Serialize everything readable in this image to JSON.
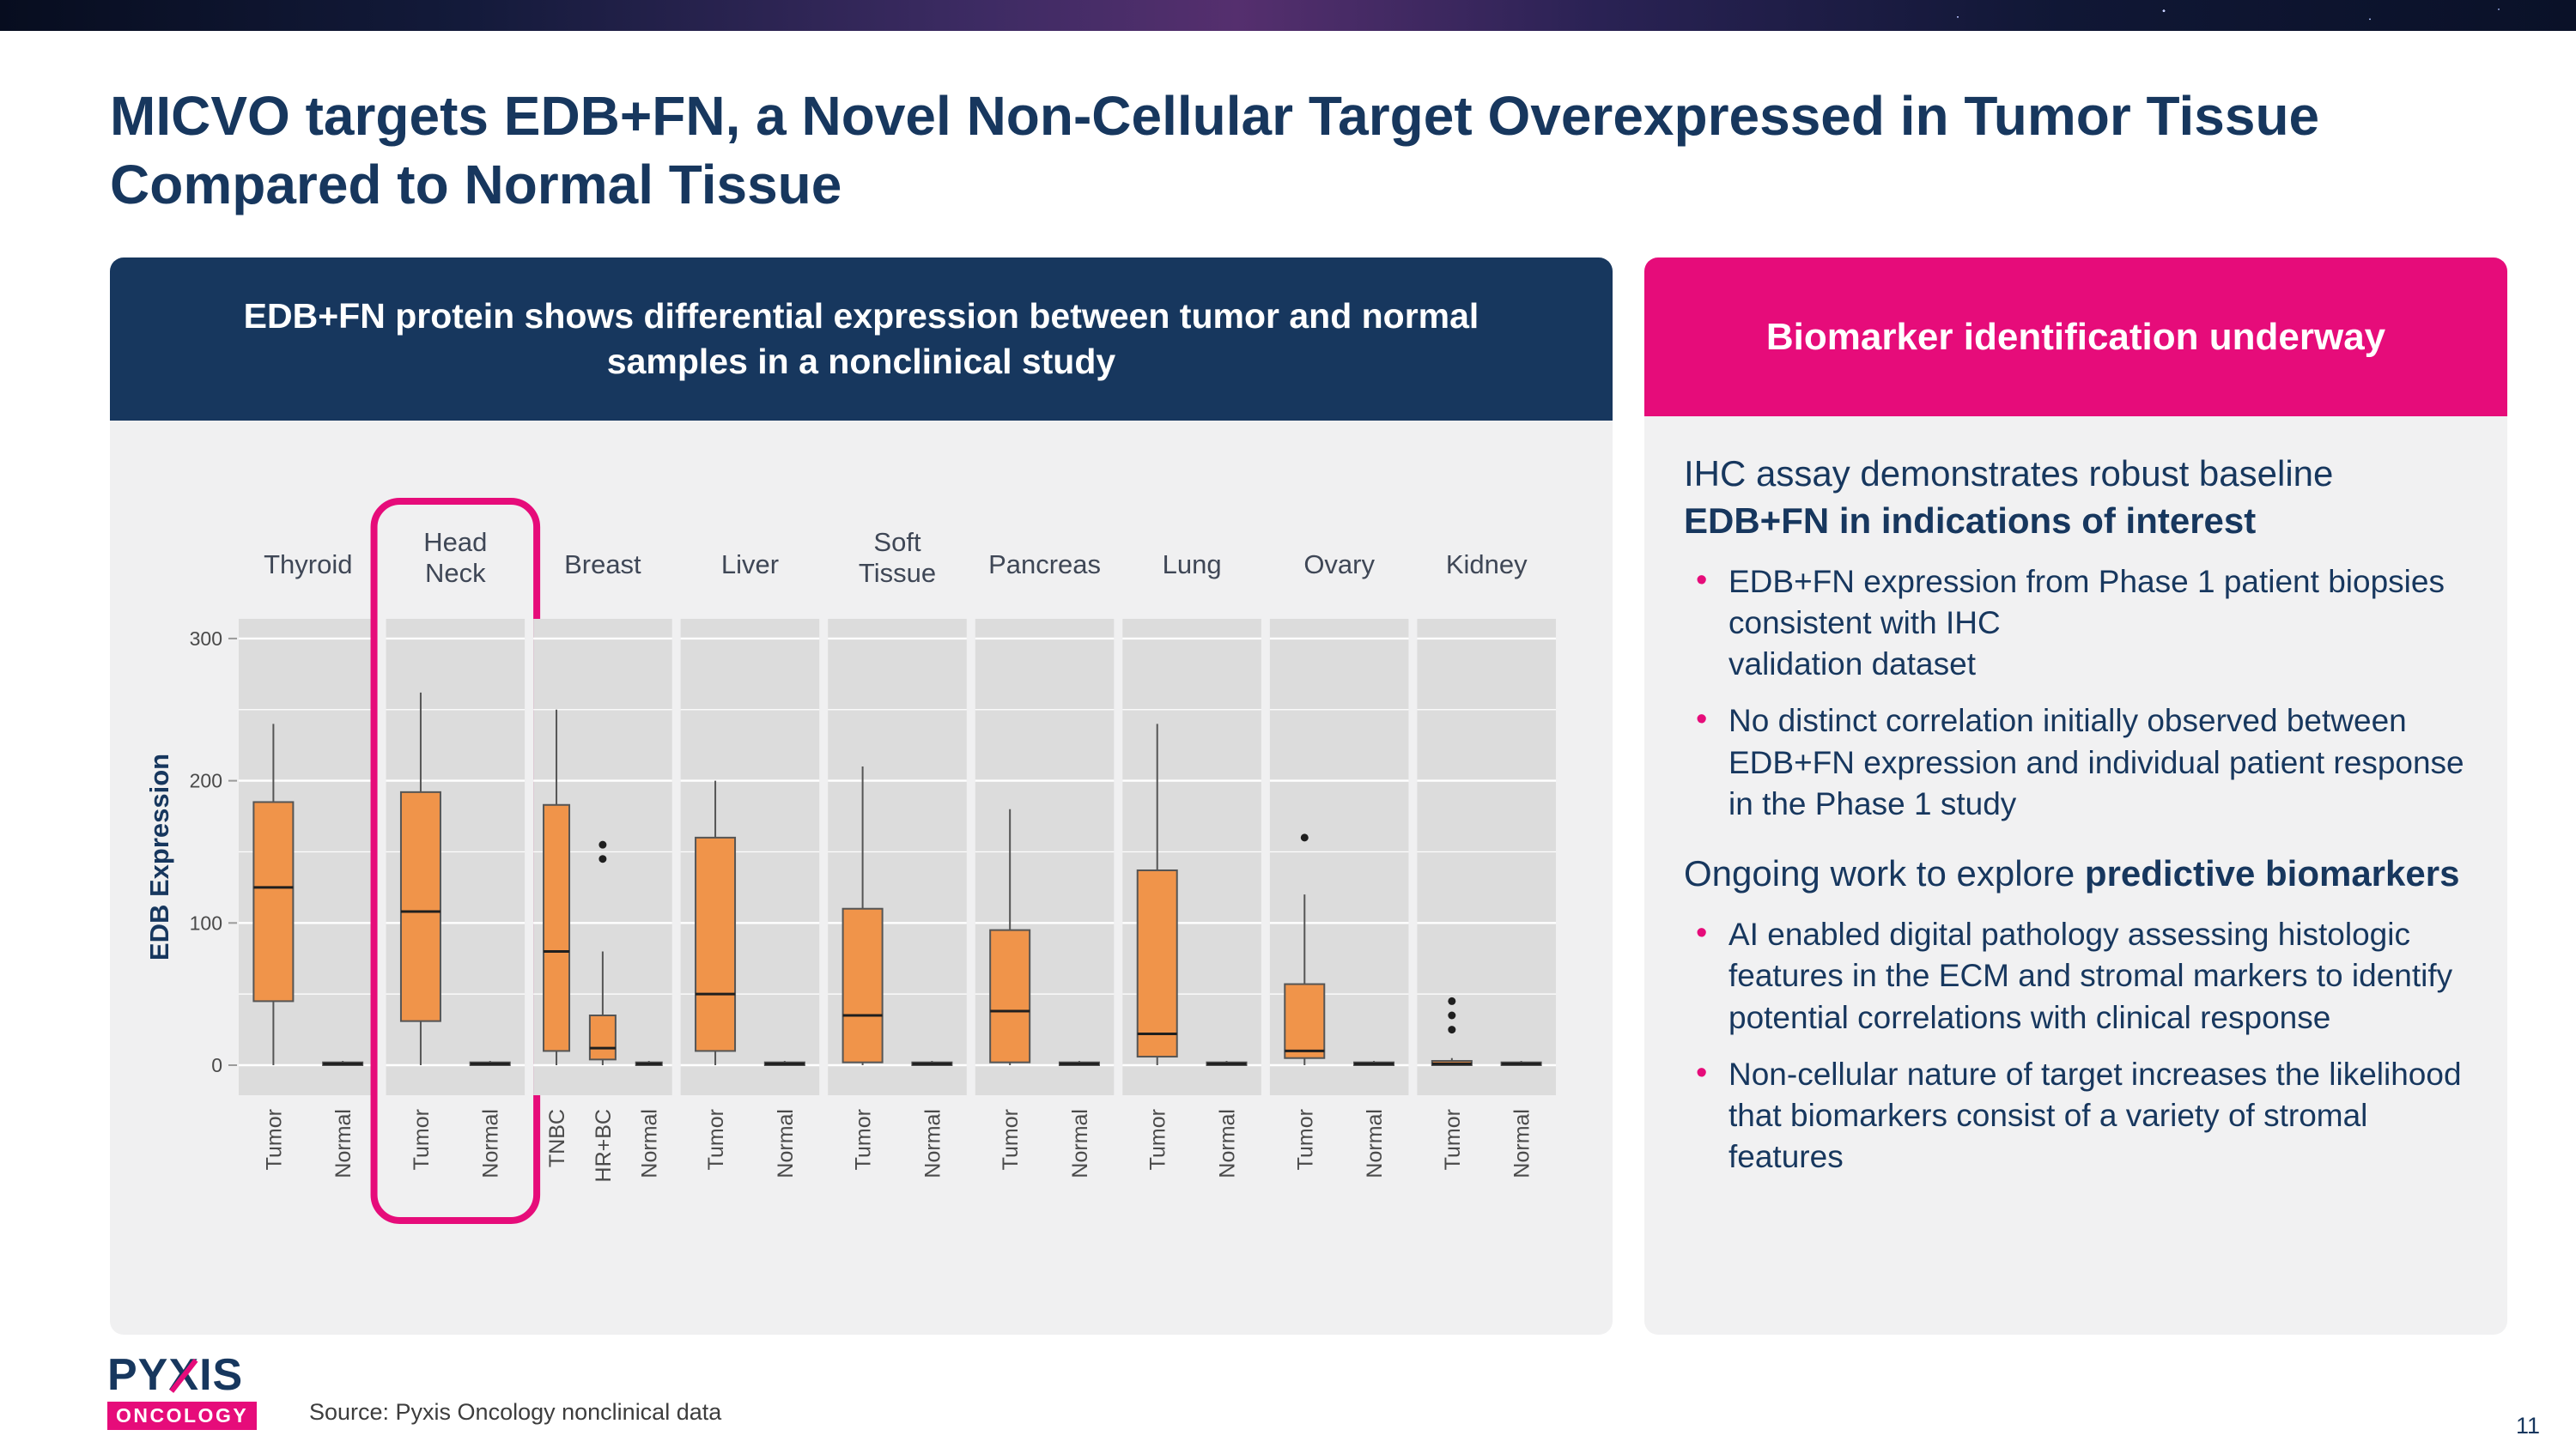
{
  "title": "MICVO targets EDB+FN, a Novel Non-Cellular Target Overexpressed in Tumor Tissue Compared to Normal Tissue",
  "left_panel": {
    "header": "EDB+FN protein shows differential expression between tumor and normal samples in a nonclinical study"
  },
  "right_panel": {
    "header": "Biomarker identification underway",
    "section1": {
      "intro_text": "IHC assay demonstrates robust baseline ",
      "intro_bold": "EDB+FN in indications of interest",
      "bullets": [
        "EDB+FN expression from Phase 1 patient biopsies consistent with IHC\nvalidation dataset",
        "No distinct correlation initially observed between EDB+FN expression and individual patient response in the Phase 1 study"
      ]
    },
    "section2": {
      "intro_text": "Ongoing work to explore ",
      "intro_bold": "predictive biomarkers",
      "bullets": [
        "AI enabled digital pathology assessing histologic features in the ECM and stromal markers to identify potential correlations with clinical response",
        "Non-cellular nature of target increases the likelihood that biomarkers consist of a variety of stromal features"
      ]
    }
  },
  "logo": {
    "p1": "PY",
    "x": "X",
    "p2": "IS",
    "sub": "ONCOLOGY"
  },
  "page": {
    "source": "Source: Pyxis Oncology nonclinical data",
    "page_number": "11"
  },
  "chart_data": {
    "type": "boxplot",
    "title": "EDB+FN protein shows differential expression between tumor and normal samples in a nonclinical study",
    "ylabel": "EDB Expression",
    "yticks": [
      0,
      100,
      200,
      300
    ],
    "yminor": [
      50,
      150,
      250
    ],
    "ylim": [
      -20,
      315
    ],
    "grid": true,
    "highlighted_group": "Head Neck",
    "colors": {
      "box_fill": "#F0944A",
      "box_stroke": "#555555",
      "panel_bg": "#DCDCDC",
      "grid": "#FFFFFF",
      "highlight": "#E60C7A",
      "label": "#3F4756",
      "tick": "#4A4A4A",
      "axis_title": "#17375E"
    },
    "groups": [
      {
        "label": "Thyroid",
        "label_lines": [
          "Thyroid"
        ],
        "highlighted": false,
        "boxes": [
          {
            "category": "Tumor",
            "low": 0,
            "q1": 45,
            "median": 125,
            "q3": 185,
            "high": 240,
            "outliers": []
          },
          {
            "category": "Normal",
            "low": 0,
            "q1": 0,
            "median": 1,
            "q3": 2,
            "high": 3,
            "outliers": []
          }
        ]
      },
      {
        "label": "Head Neck",
        "label_lines": [
          "Head",
          "Neck"
        ],
        "highlighted": true,
        "boxes": [
          {
            "category": "Tumor",
            "low": 0,
            "q1": 31,
            "median": 108,
            "q3": 192,
            "high": 262,
            "outliers": []
          },
          {
            "category": "Normal",
            "low": 0,
            "q1": 0,
            "median": 1,
            "q3": 2,
            "high": 3,
            "outliers": []
          }
        ]
      },
      {
        "label": "Breast",
        "label_lines": [
          "Breast"
        ],
        "highlighted": false,
        "boxes": [
          {
            "category": "TNBC",
            "low": 0,
            "q1": 10,
            "median": 80,
            "q3": 183,
            "high": 250,
            "outliers": []
          },
          {
            "category": "HR+BC",
            "low": 0,
            "q1": 4,
            "median": 12,
            "q3": 35,
            "high": 80,
            "outliers": [
              145,
              155
            ]
          },
          {
            "category": "Normal",
            "low": 0,
            "q1": 0,
            "median": 1,
            "q3": 2,
            "high": 3,
            "outliers": []
          }
        ]
      },
      {
        "label": "Liver",
        "label_lines": [
          "Liver"
        ],
        "highlighted": false,
        "boxes": [
          {
            "category": "Tumor",
            "low": 0,
            "q1": 10,
            "median": 50,
            "q3": 160,
            "high": 200,
            "outliers": []
          },
          {
            "category": "Normal",
            "low": 0,
            "q1": 0,
            "median": 1,
            "q3": 2,
            "high": 3,
            "outliers": []
          }
        ]
      },
      {
        "label": "Soft Tissue",
        "label_lines": [
          "Soft",
          "Tissue"
        ],
        "highlighted": false,
        "boxes": [
          {
            "category": "Tumor",
            "low": 0,
            "q1": 2,
            "median": 35,
            "q3": 110,
            "high": 210,
            "outliers": []
          },
          {
            "category": "Normal",
            "low": 0,
            "q1": 0,
            "median": 1,
            "q3": 2,
            "high": 3,
            "outliers": []
          }
        ]
      },
      {
        "label": "Pancreas",
        "label_lines": [
          "Pancreas"
        ],
        "highlighted": false,
        "boxes": [
          {
            "category": "Tumor",
            "low": 0,
            "q1": 2,
            "median": 38,
            "q3": 95,
            "high": 180,
            "outliers": []
          },
          {
            "category": "Normal",
            "low": 0,
            "q1": 0,
            "median": 1,
            "q3": 2,
            "high": 3,
            "outliers": []
          }
        ]
      },
      {
        "label": "Lung",
        "label_lines": [
          "Lung"
        ],
        "highlighted": false,
        "boxes": [
          {
            "category": "Tumor",
            "low": 0,
            "q1": 6,
            "median": 22,
            "q3": 137,
            "high": 240,
            "outliers": []
          },
          {
            "category": "Normal",
            "low": 0,
            "q1": 0,
            "median": 1,
            "q3": 2,
            "high": 3,
            "outliers": []
          }
        ]
      },
      {
        "label": "Ovary",
        "label_lines": [
          "Ovary"
        ],
        "highlighted": false,
        "boxes": [
          {
            "category": "Tumor",
            "low": 0,
            "q1": 5,
            "median": 10,
            "q3": 57,
            "high": 120,
            "outliers": [
              160
            ]
          },
          {
            "category": "Normal",
            "low": 0,
            "q1": 0,
            "median": 1,
            "q3": 2,
            "high": 3,
            "outliers": []
          }
        ]
      },
      {
        "label": "Kidney",
        "label_lines": [
          "Kidney"
        ],
        "highlighted": false,
        "boxes": [
          {
            "category": "Tumor",
            "low": 0,
            "q1": 0,
            "median": 1,
            "q3": 3,
            "high": 5,
            "outliers": [
              25,
              35,
              45
            ]
          },
          {
            "category": "Normal",
            "low": 0,
            "q1": 0,
            "median": 1,
            "q3": 2,
            "high": 3,
            "outliers": []
          }
        ]
      }
    ]
  }
}
